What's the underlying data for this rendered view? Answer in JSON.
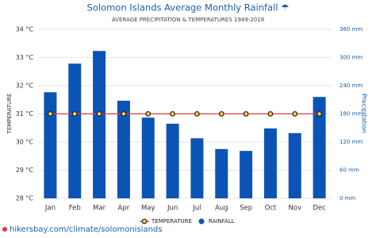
{
  "chart_data": {
    "type": "bar-line",
    "title": "Solomon Islands Average Monthly Rainfall ☂",
    "subtitle": "AVERAGE PRECIPITATION & TEMPERATURES 1949-2018",
    "y_label": "TEMPERATURE",
    "y2_label": "Precipitation",
    "footer": "hikersbay.com/climate/solomonislands",
    "categories": [
      "Jan",
      "Feb",
      "Mar",
      "Apr",
      "May",
      "Jun",
      "Jul",
      "Aug",
      "Sep",
      "Oct",
      "Nov",
      "Dec"
    ],
    "series": [
      {
        "name": "TEMPERATURE",
        "type": "line",
        "axis": "y",
        "color": "#e0393e",
        "values": [
          31,
          31,
          31,
          31,
          31,
          31,
          31,
          31,
          31,
          31,
          31,
          31
        ]
      },
      {
        "name": "RAINFALL",
        "type": "bar",
        "axis": "y2",
        "color": "#0b54b5",
        "values": [
          226,
          287,
          314,
          208,
          172,
          159,
          128,
          105,
          101,
          149,
          139,
          216
        ]
      }
    ],
    "ylim": [
      28,
      34
    ],
    "yticks": [
      {
        "value": 28,
        "label": "28 °C"
      },
      {
        "value": 29,
        "label": "29 °C"
      },
      {
        "value": 30,
        "label": "30 °C"
      },
      {
        "value": 31,
        "label": "31 °C"
      },
      {
        "value": 32,
        "label": "32 °C"
      },
      {
        "value": 33,
        "label": "33 °C"
      },
      {
        "value": 34,
        "label": "34 °C"
      }
    ],
    "y2lim": [
      0,
      360
    ],
    "y2ticks": [
      {
        "value": 0,
        "label": "0 mm"
      },
      {
        "value": 60,
        "label": "60 mm"
      },
      {
        "value": 120,
        "label": "120 mm"
      },
      {
        "value": 180,
        "label": "180 mm"
      },
      {
        "value": 240,
        "label": "240 mm"
      },
      {
        "value": 300,
        "label": "300 mm"
      },
      {
        "value": 360,
        "label": "360 mm"
      }
    ],
    "grid": true
  }
}
